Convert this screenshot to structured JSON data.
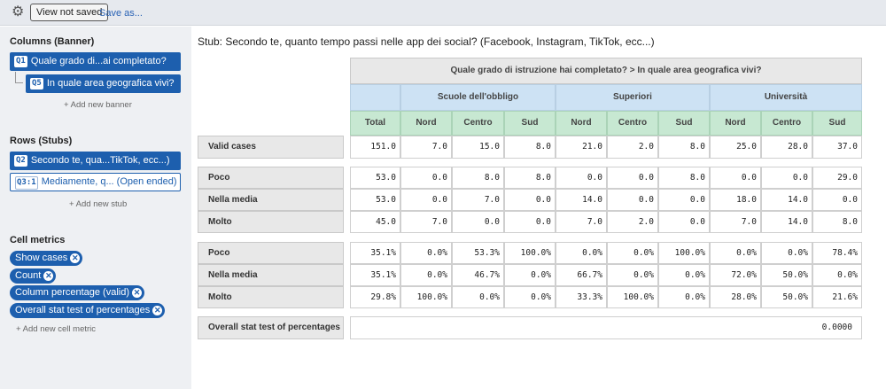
{
  "topbar": {
    "view_not_saved": "View not saved",
    "save_as": "Save as...",
    "settings_icon": "gear-icon"
  },
  "sidebar": {
    "columns_title": "Columns (Banner)",
    "columns": [
      {
        "tag": "Q1",
        "label": "Quale grado di...ai completato?"
      },
      {
        "tag": "Q5",
        "label": "In quale area geografica vivi?"
      }
    ],
    "add_banner": "+ Add new banner",
    "rows_title": "Rows (Stubs)",
    "rows": [
      {
        "tag": "Q2",
        "label": "Secondo te, qua...TikTok, ecc...)"
      },
      {
        "tag": "Q3:1",
        "label": "Mediamente, q... (Open ended)"
      }
    ],
    "add_stub": "+ Add new stub",
    "metrics_title": "Cell metrics",
    "metrics": [
      "Show cases",
      "Count",
      "Column percentage (valid)",
      "Overall stat test of percentages"
    ],
    "add_metric": "+ Add new cell metric"
  },
  "main": {
    "stub_title": "Stub: Secondo te, quanto tempo passi nelle app dei social? (Facebook, Instagram, TikTok, ecc...)",
    "banner_header": "Quale grado di istruzione hai completato? > In quale area geografica vivi?",
    "groups": [
      "Scuole dell'obbligo",
      "Superiori",
      "Università"
    ],
    "columns": [
      "Total",
      "Nord",
      "Centro",
      "Sud",
      "Nord",
      "Centro",
      "Sud",
      "Nord",
      "Centro",
      "Sud"
    ],
    "valid_cases": {
      "label": "Valid cases",
      "values": [
        "151.0",
        "7.0",
        "15.0",
        "8.0",
        "21.0",
        "2.0",
        "8.0",
        "25.0",
        "28.0",
        "37.0"
      ]
    },
    "count_rows": [
      {
        "label": "Poco",
        "values": [
          "53.0",
          "0.0",
          "8.0",
          "8.0",
          "0.0",
          "0.0",
          "8.0",
          "0.0",
          "0.0",
          "29.0"
        ]
      },
      {
        "label": "Nella media",
        "values": [
          "53.0",
          "0.0",
          "7.0",
          "0.0",
          "14.0",
          "0.0",
          "0.0",
          "18.0",
          "14.0",
          "0.0"
        ]
      },
      {
        "label": "Molto",
        "values": [
          "45.0",
          "7.0",
          "0.0",
          "0.0",
          "7.0",
          "2.0",
          "0.0",
          "7.0",
          "14.0",
          "8.0"
        ]
      }
    ],
    "pct_rows": [
      {
        "label": "Poco",
        "values": [
          "35.1%",
          "0.0%",
          "53.3%",
          "100.0%",
          "0.0%",
          "0.0%",
          "100.0%",
          "0.0%",
          "0.0%",
          "78.4%"
        ]
      },
      {
        "label": "Nella media",
        "values": [
          "35.1%",
          "0.0%",
          "46.7%",
          "0.0%",
          "66.7%",
          "0.0%",
          "0.0%",
          "72.0%",
          "50.0%",
          "0.0%"
        ]
      },
      {
        "label": "Molto",
        "values": [
          "29.8%",
          "100.0%",
          "0.0%",
          "0.0%",
          "33.3%",
          "100.0%",
          "0.0%",
          "28.0%",
          "50.0%",
          "21.6%"
        ]
      }
    ],
    "overall": {
      "label": "Overall stat test of percentages",
      "value": "0.0000"
    }
  }
}
